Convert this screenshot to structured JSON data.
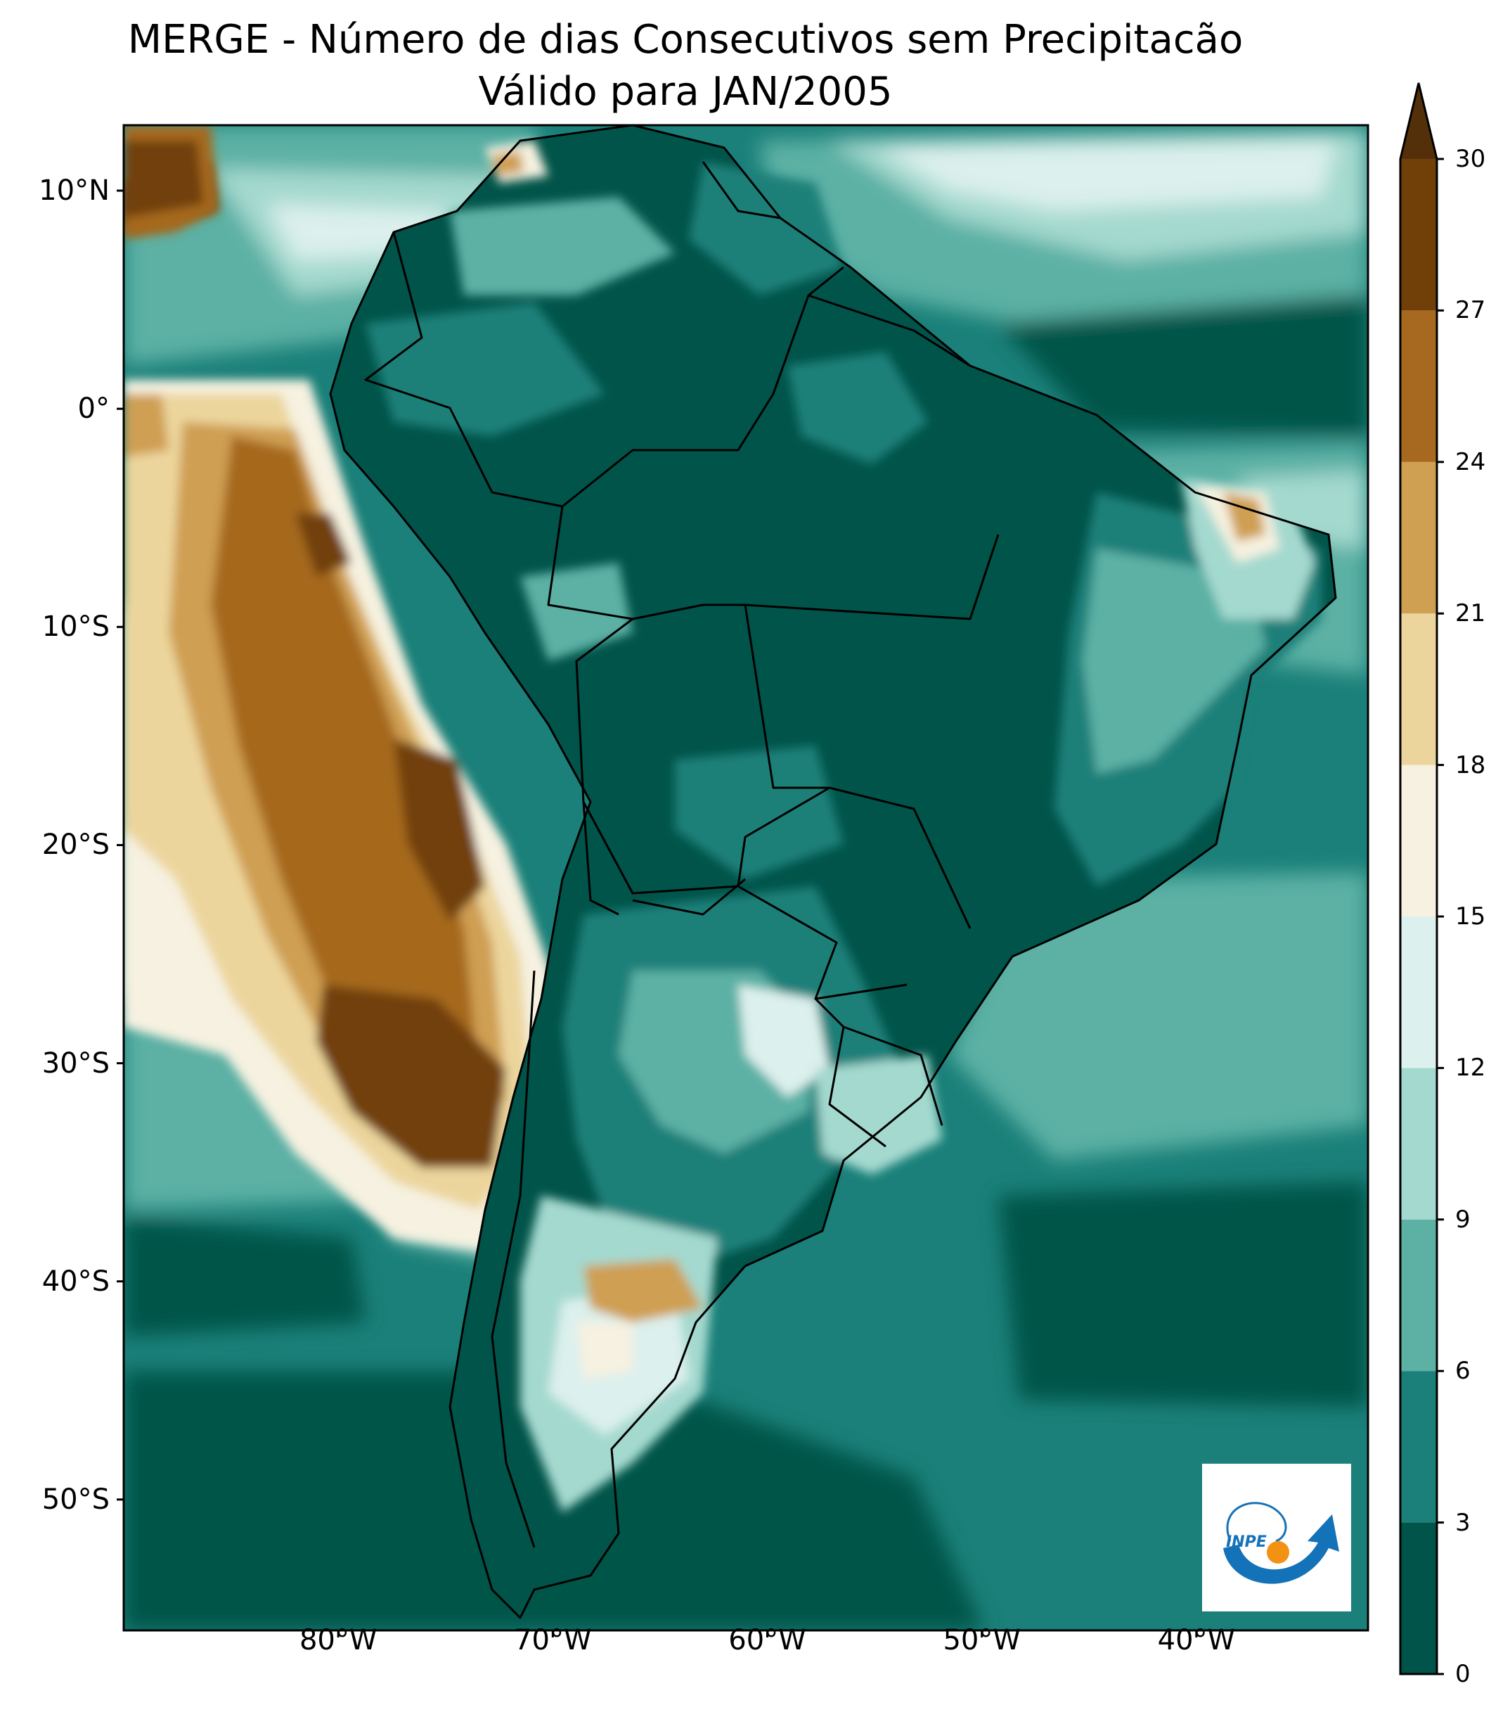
{
  "title": {
    "line1": "MERGE - Número de dias Consecutivos sem Precipitacão",
    "line2": "Válido para JAN/2005"
  },
  "map_axes": {
    "lon_range": [
      -90,
      -32
    ],
    "lat_range": [
      -56,
      13
    ],
    "lat_ticks": [
      {
        "value": 10,
        "label": "10°N"
      },
      {
        "value": 0,
        "label": "0°"
      },
      {
        "value": -10,
        "label": "10°S"
      },
      {
        "value": -20,
        "label": "20°S"
      },
      {
        "value": -30,
        "label": "30°S"
      },
      {
        "value": -40,
        "label": "40°S"
      },
      {
        "value": -50,
        "label": "50°S"
      }
    ],
    "lon_ticks": [
      {
        "value": -80,
        "label": "80°W"
      },
      {
        "value": -70,
        "label": "70°W"
      },
      {
        "value": -60,
        "label": "60°W"
      },
      {
        "value": -50,
        "label": "50°W"
      },
      {
        "value": -40,
        "label": "40°W"
      }
    ]
  },
  "colorbar": {
    "levels": [
      0,
      3,
      6,
      9,
      12,
      15,
      18,
      21,
      24,
      27,
      30
    ],
    "labels": [
      "0",
      "3",
      "6",
      "9",
      "12",
      "15",
      "18",
      "21",
      "24",
      "27",
      "30"
    ],
    "colors": [
      "#01544a",
      "#1a8079",
      "#5cb0a4",
      "#a4d9cf",
      "#dcf0ed",
      "#f6f1e0",
      "#ecd59c",
      "#cf9f52",
      "#a6691f",
      "#714009"
    ],
    "extend_color": "#54300a",
    "extend": "max"
  },
  "field": {
    "land_color": "#01544a",
    "ocean_color": "#1a8079"
  },
  "logo": {
    "text": "INPE",
    "blue": "#1472b8",
    "orange": "#f39112"
  }
}
